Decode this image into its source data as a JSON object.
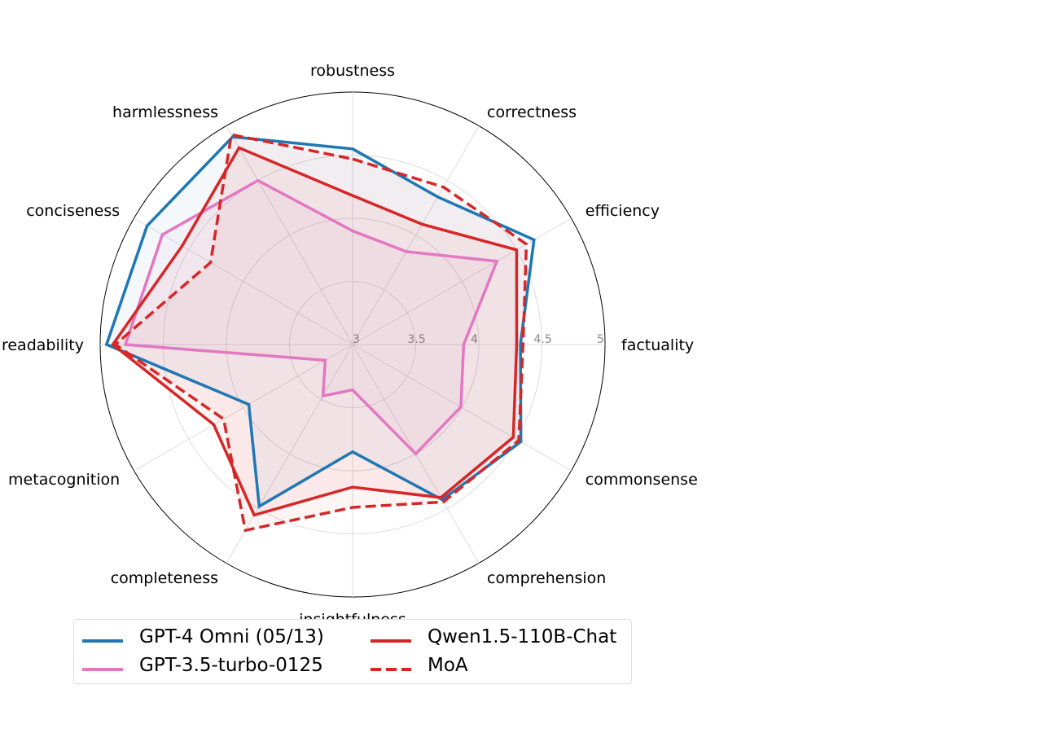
{
  "chart_data": {
    "type": "radar",
    "axes": [
      "factuality",
      "correctness",
      "robustness",
      "harmlessness",
      "conciseness",
      "readability",
      "metacognition",
      "completeness",
      "insightfulness",
      "comprehension",
      "commonsense",
      "efficiency"
    ],
    "axis_order_clockwise_from_top": [
      "robustness",
      "correctness",
      "efficiency",
      "factuality",
      "commonsense",
      "comprehension",
      "insightfulness",
      "completeness",
      "metacognition",
      "readability",
      "conciseness",
      "harmlessness"
    ],
    "rlim": [
      3,
      5
    ],
    "ticks": [
      "3",
      "3.5",
      "4",
      "4.5",
      "5"
    ],
    "grid": true,
    "legend_position": "bottom",
    "series": [
      {
        "name": "GPT-4 Omni (05/13)",
        "color": "#1f77b4",
        "style": "solid",
        "values": {
          "robustness": 4.55,
          "correctness": 4.35,
          "efficiency": 4.66,
          "factuality": 4.33,
          "commonsense": 4.54,
          "comprehension": 4.42,
          "insightfulness": 3.85,
          "completeness": 4.48,
          "metacognition": 3.95,
          "readability": 4.95,
          "conciseness": 4.88,
          "harmlessness": 4.9
        }
      },
      {
        "name": "GPT-3.5-turbo-0125",
        "color": "#e377c2",
        "style": "solid",
        "values": {
          "robustness": 3.9,
          "correctness": 3.85,
          "efficiency": 4.32,
          "factuality": 3.88,
          "commonsense": 3.99,
          "comprehension": 4.0,
          "insightfulness": 3.36,
          "completeness": 3.47,
          "metacognition": 3.25,
          "readability": 4.8,
          "conciseness": 4.74,
          "harmlessness": 4.5
        }
      },
      {
        "name": "Qwen1.5-110B-Chat",
        "color": "#d62728",
        "style": "solid",
        "values": {
          "robustness": 4.18,
          "correctness": 4.1,
          "efficiency": 4.5,
          "factuality": 4.3,
          "commonsense": 4.47,
          "comprehension": 4.4,
          "insightfulness": 4.13,
          "completeness": 4.56,
          "metacognition": 4.27,
          "readability": 4.9,
          "conciseness": 4.56,
          "harmlessness": 4.8
        }
      },
      {
        "name": "MoA",
        "color": "#d62728",
        "style": "dashed",
        "values": {
          "robustness": 4.47,
          "correctness": 4.44,
          "efficiency": 4.59,
          "factuality": 4.35,
          "commonsense": 4.52,
          "comprehension": 4.44,
          "insightfulness": 4.29,
          "completeness": 4.7,
          "metacognition": 4.18,
          "readability": 4.88,
          "conciseness": 4.3,
          "harmlessness": 4.92
        }
      }
    ]
  },
  "legend": {
    "items": [
      {
        "label": "GPT-4 Omni (05/13)",
        "color": "#1f77b4",
        "style": "solid"
      },
      {
        "label": "GPT-3.5-turbo-0125",
        "color": "#e377c2",
        "style": "solid"
      },
      {
        "label": "Qwen1.5-110B-Chat",
        "color": "#d62728",
        "style": "solid"
      },
      {
        "label": "MoA",
        "color": "#d62728",
        "style": "dashed"
      }
    ]
  }
}
